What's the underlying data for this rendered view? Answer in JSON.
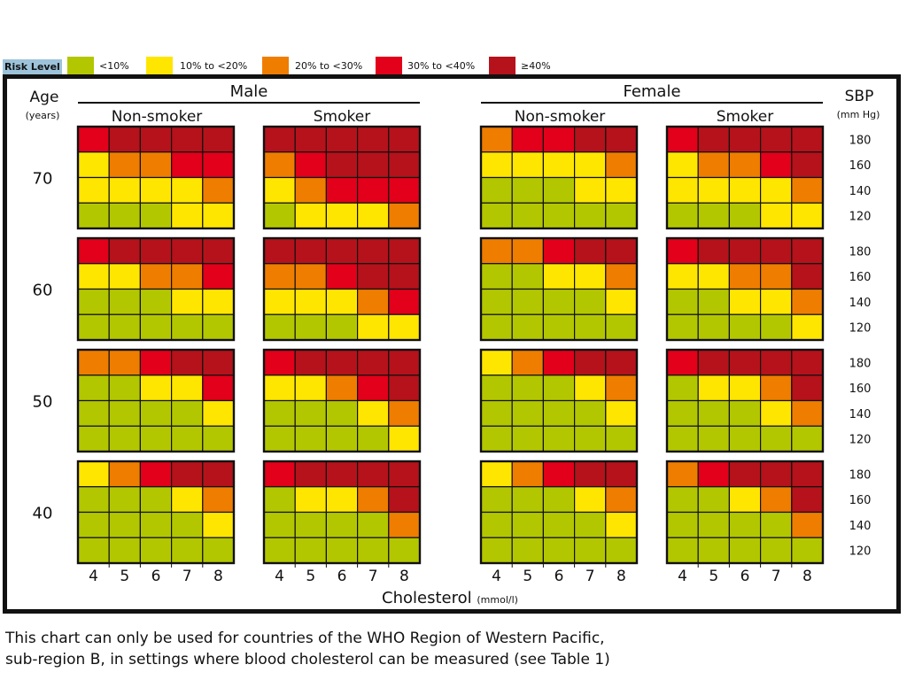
{
  "legend": {
    "title": "Risk Level",
    "items": [
      {
        "label": "<10%",
        "color": "#b3c700"
      },
      {
        "label": "10% to <20%",
        "color": "#ffe600"
      },
      {
        "label": "20% to <30%",
        "color": "#ef7d00"
      },
      {
        "label": "30% to <40%",
        "color": "#e2001a"
      },
      {
        "label": "≥40%",
        "color": "#b5121b"
      }
    ]
  },
  "footnote": {
    "line1": "This chart can only be used for countries of the WHO Region of Western Pacific,",
    "line2": "sub-region B, in settings where blood cholesterol can be measured (see Table 1)"
  },
  "chart_data": {
    "type": "heatmap",
    "title": "",
    "xlabel": "Cholesterol",
    "xlabel_unit": "(mmol/l)",
    "ylabel_left": "Age",
    "ylabel_left_unit": "(years)",
    "ylabel_right": "SBP",
    "ylabel_right_unit": "(mm Hg)",
    "sexes": [
      "Male",
      "Female"
    ],
    "smoking": [
      "Non-smoker",
      "Smoker"
    ],
    "ages": [
      "70",
      "60",
      "50",
      "40"
    ],
    "sbp": [
      "180",
      "160",
      "140",
      "120"
    ],
    "cholesterol": [
      "4",
      "5",
      "6",
      "7",
      "8"
    ],
    "risk_levels": [
      "<10%",
      "10% to <20%",
      "20% to <30%",
      "30% to <40%",
      "≥40%"
    ],
    "grids": {
      "Male": {
        "Non-smoker": {
          "70": [
            [
              3,
              4,
              4,
              4,
              4
            ],
            [
              1,
              2,
              2,
              3,
              3
            ],
            [
              1,
              1,
              1,
              1,
              2
            ],
            [
              0,
              0,
              0,
              1,
              1
            ]
          ],
          "60": [
            [
              3,
              4,
              4,
              4,
              4
            ],
            [
              1,
              1,
              2,
              2,
              3
            ],
            [
              0,
              0,
              0,
              1,
              1
            ],
            [
              0,
              0,
              0,
              0,
              0
            ]
          ],
          "50": [
            [
              2,
              2,
              3,
              4,
              4
            ],
            [
              0,
              0,
              1,
              1,
              3
            ],
            [
              0,
              0,
              0,
              0,
              1
            ],
            [
              0,
              0,
              0,
              0,
              0
            ]
          ],
          "40": [
            [
              1,
              2,
              3,
              4,
              4
            ],
            [
              0,
              0,
              0,
              1,
              2
            ],
            [
              0,
              0,
              0,
              0,
              1
            ],
            [
              0,
              0,
              0,
              0,
              0
            ]
          ]
        },
        "Smoker": {
          "70": [
            [
              4,
              4,
              4,
              4,
              4
            ],
            [
              2,
              3,
              4,
              4,
              4
            ],
            [
              1,
              2,
              3,
              3,
              3
            ],
            [
              0,
              1,
              1,
              1,
              2
            ]
          ],
          "60": [
            [
              4,
              4,
              4,
              4,
              4
            ],
            [
              2,
              2,
              3,
              4,
              4
            ],
            [
              1,
              1,
              1,
              2,
              3
            ],
            [
              0,
              0,
              0,
              1,
              1
            ]
          ],
          "50": [
            [
              3,
              4,
              4,
              4,
              4
            ],
            [
              1,
              1,
              2,
              3,
              4
            ],
            [
              0,
              0,
              0,
              1,
              2
            ],
            [
              0,
              0,
              0,
              0,
              1
            ]
          ],
          "40": [
            [
              3,
              4,
              4,
              4,
              4
            ],
            [
              0,
              1,
              1,
              2,
              4
            ],
            [
              0,
              0,
              0,
              0,
              2
            ],
            [
              0,
              0,
              0,
              0,
              0
            ]
          ]
        }
      },
      "Female": {
        "Non-smoker": {
          "70": [
            [
              2,
              3,
              3,
              4,
              4
            ],
            [
              1,
              1,
              1,
              1,
              2
            ],
            [
              0,
              0,
              0,
              1,
              1
            ],
            [
              0,
              0,
              0,
              0,
              0
            ]
          ],
          "60": [
            [
              2,
              2,
              3,
              4,
              4
            ],
            [
              0,
              0,
              1,
              1,
              2
            ],
            [
              0,
              0,
              0,
              0,
              1
            ],
            [
              0,
              0,
              0,
              0,
              0
            ]
          ],
          "50": [
            [
              1,
              2,
              3,
              4,
              4
            ],
            [
              0,
              0,
              0,
              1,
              2
            ],
            [
              0,
              0,
              0,
              0,
              1
            ],
            [
              0,
              0,
              0,
              0,
              0
            ]
          ],
          "40": [
            [
              1,
              2,
              3,
              4,
              4
            ],
            [
              0,
              0,
              0,
              1,
              2
            ],
            [
              0,
              0,
              0,
              0,
              1
            ],
            [
              0,
              0,
              0,
              0,
              0
            ]
          ]
        },
        "Smoker": {
          "70": [
            [
              3,
              4,
              4,
              4,
              4
            ],
            [
              1,
              2,
              2,
              3,
              4
            ],
            [
              1,
              1,
              1,
              1,
              2
            ],
            [
              0,
              0,
              0,
              1,
              1
            ]
          ],
          "60": [
            [
              3,
              4,
              4,
              4,
              4
            ],
            [
              1,
              1,
              2,
              2,
              4
            ],
            [
              0,
              0,
              1,
              1,
              2
            ],
            [
              0,
              0,
              0,
              0,
              1
            ]
          ],
          "50": [
            [
              3,
              4,
              4,
              4,
              4
            ],
            [
              0,
              1,
              1,
              2,
              4
            ],
            [
              0,
              0,
              0,
              1,
              2
            ],
            [
              0,
              0,
              0,
              0,
              0
            ]
          ],
          "40": [
            [
              2,
              3,
              4,
              4,
              4
            ],
            [
              0,
              0,
              1,
              2,
              4
            ],
            [
              0,
              0,
              0,
              0,
              2
            ],
            [
              0,
              0,
              0,
              0,
              0
            ]
          ]
        }
      }
    }
  }
}
